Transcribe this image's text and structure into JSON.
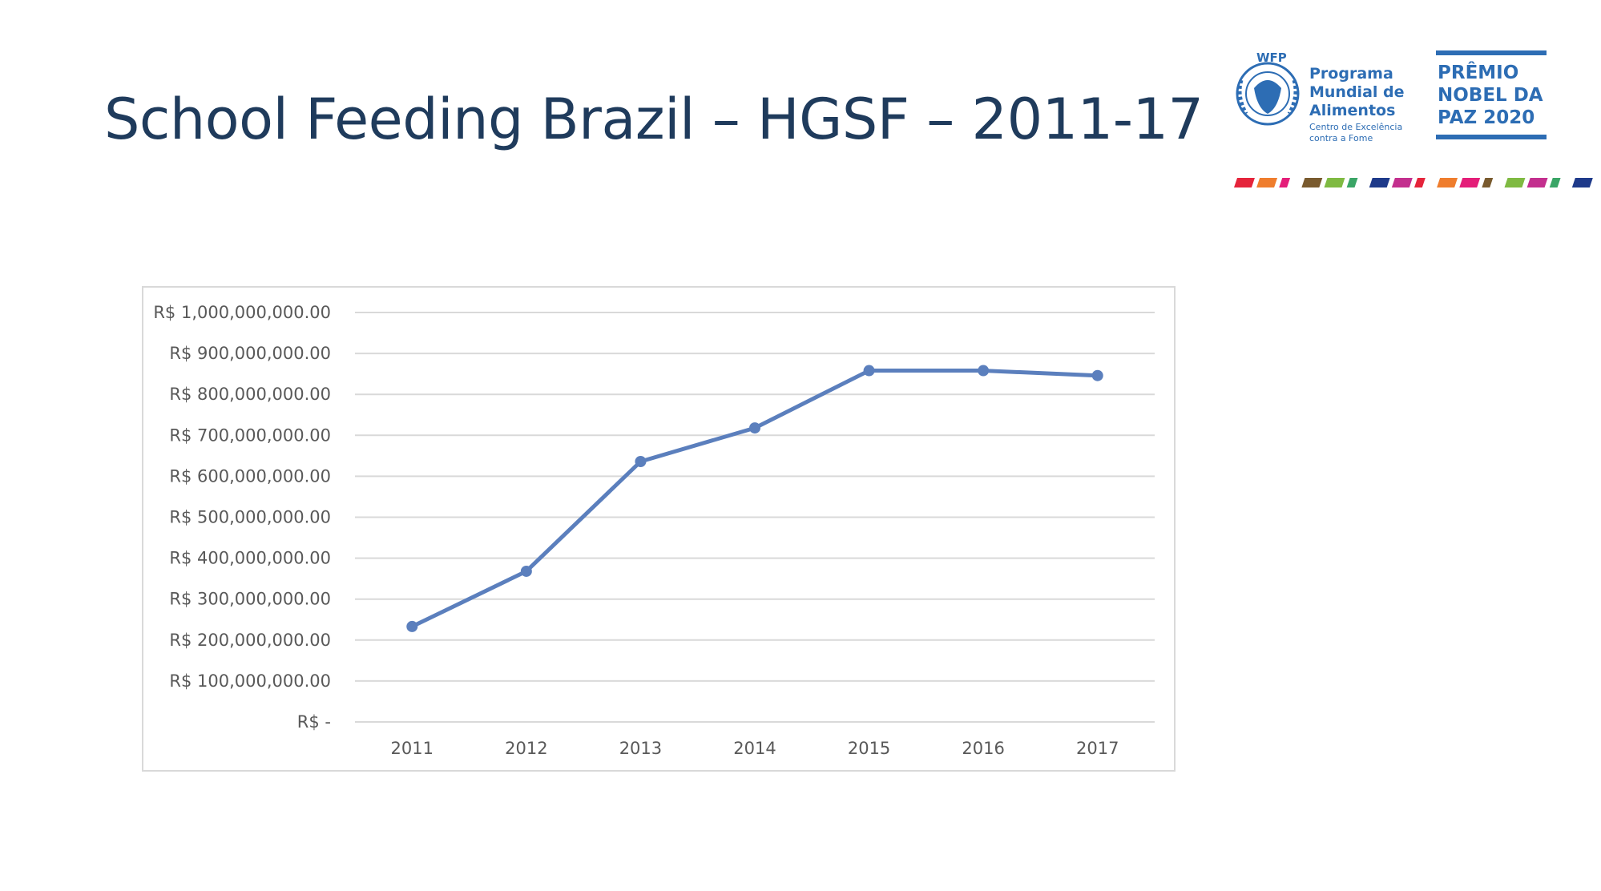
{
  "slide": {
    "title": "School Feeding Brazil – HGSF – 2011-17"
  },
  "logo": {
    "wfp_acronym": "WFP",
    "wfp_line1": "Programa",
    "wfp_line2": "Mundial de",
    "wfp_line3": "Alimentos",
    "wfp_sub1": "Centro de Excelência",
    "wfp_sub2": "contra a Fome",
    "nobel_line1": "PRÊMIO",
    "nobel_line2": "NOBEL DA",
    "nobel_line3": "PAZ 2020",
    "brand_color": "#2d6db4"
  },
  "stripe_colors": [
    "#e5243b",
    "#ef7d2d",
    "#e41e79",
    "#795a2e",
    "#7fba42",
    "#3aa566",
    "#1e3a8a",
    "#c32f8e",
    "#e5243b",
    "#ef7d2d",
    "#e41e79",
    "#795a2e",
    "#7fba42",
    "#c32f8e",
    "#3aa566",
    "#1e3a8a"
  ],
  "chart_data": {
    "type": "line",
    "categories": [
      "2011",
      "2012",
      "2013",
      "2014",
      "2015",
      "2016",
      "2017"
    ],
    "series": [
      {
        "values": [
          233000000,
          368000000,
          636000000,
          718000000,
          858000000,
          858000000,
          846000000
        ],
        "color": "#5b7fbd"
      }
    ],
    "ylim": [
      0,
      1000000000
    ],
    "yticks": [
      0,
      100000000,
      200000000,
      300000000,
      400000000,
      500000000,
      600000000,
      700000000,
      800000000,
      900000000,
      1000000000
    ],
    "ytick_labels": [
      "R$ -",
      "R$ 100,000,000.00",
      "R$ 200,000,000.00",
      "R$ 300,000,000.00",
      "R$ 400,000,000.00",
      "R$ 500,000,000.00",
      "R$ 600,000,000.00",
      "R$ 700,000,000.00",
      "R$ 800,000,000.00",
      "R$ 900,000,000.00",
      "R$ 1,000,000,000.00"
    ],
    "grid": true,
    "legend": "none",
    "title": "",
    "xlabel": "",
    "ylabel": ""
  }
}
